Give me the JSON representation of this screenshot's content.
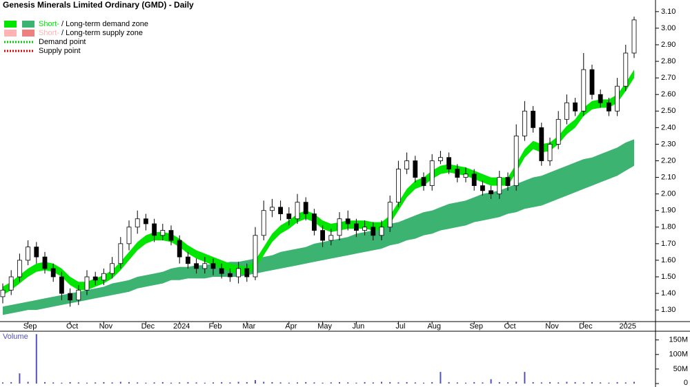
{
  "chart_data": {
    "type": "candlestick",
    "title": "Genesis Minerals Limited Ordinary (GMD) - Daily",
    "categories": [
      null,
      null,
      null,
      "Sep",
      null,
      null,
      null,
      null,
      "Oct",
      null,
      null,
      null,
      "Nov",
      null,
      null,
      null,
      null,
      "Dec",
      null,
      null,
      null,
      "2024",
      null,
      null,
      null,
      "Feb",
      null,
      null,
      null,
      "Mar",
      null,
      null,
      null,
      null,
      "Apr",
      null,
      null,
      null,
      "May",
      null,
      null,
      null,
      "Jun",
      null,
      null,
      null,
      null,
      "Jul",
      null,
      null,
      null,
      "Aug",
      null,
      null,
      null,
      null,
      "Sep",
      null,
      null,
      null,
      "Oct",
      null,
      null,
      null,
      null,
      "Nov",
      null,
      null,
      null,
      "Dec",
      null,
      null,
      null,
      null,
      "2025",
      null
    ],
    "open": [
      1.38,
      1.42,
      1.5,
      1.6,
      1.68,
      1.62,
      1.55,
      1.5,
      1.4,
      1.36,
      1.42,
      1.5,
      1.48,
      1.52,
      1.58,
      1.7,
      1.8,
      1.85,
      1.82,
      1.75,
      1.78,
      1.72,
      1.62,
      1.58,
      1.55,
      1.58,
      1.55,
      1.52,
      1.5,
      1.55,
      1.5,
      1.75,
      1.9,
      1.92,
      1.88,
      1.85,
      1.95,
      1.88,
      1.78,
      1.72,
      1.75,
      1.85,
      1.82,
      1.78,
      1.8,
      1.75,
      1.8,
      1.95,
      2.15,
      2.2,
      2.1,
      2.05,
      2.2,
      2.22,
      2.15,
      2.1,
      2.12,
      2.05,
      2.02,
      2.0,
      2.1,
      2.05,
      2.35,
      2.5,
      2.4,
      2.2,
      2.3,
      2.45,
      2.55,
      2.5,
      2.75,
      2.6,
      2.55,
      2.5,
      2.65,
      2.85
    ],
    "high": [
      1.46,
      1.54,
      1.64,
      1.72,
      1.71,
      1.65,
      1.58,
      1.53,
      1.43,
      1.45,
      1.54,
      1.53,
      1.55,
      1.62,
      1.74,
      1.84,
      1.9,
      1.88,
      1.85,
      1.82,
      1.81,
      1.75,
      1.65,
      1.61,
      1.62,
      1.61,
      1.58,
      1.55,
      1.59,
      1.58,
      1.8,
      1.96,
      1.97,
      1.96,
      1.92,
      2.0,
      1.98,
      1.91,
      1.81,
      1.79,
      1.89,
      1.9,
      1.85,
      1.84,
      1.83,
      1.84,
      1.99,
      2.2,
      2.25,
      2.23,
      2.13,
      2.24,
      2.26,
      2.25,
      2.18,
      2.16,
      2.15,
      2.08,
      2.05,
      2.14,
      2.13,
      2.42,
      2.56,
      2.53,
      2.43,
      2.34,
      2.5,
      2.6,
      2.58,
      2.85,
      2.78,
      2.63,
      2.58,
      2.7,
      2.9,
      3.07
    ],
    "low": [
      1.34,
      1.39,
      1.47,
      1.57,
      1.58,
      1.52,
      1.47,
      1.36,
      1.32,
      1.33,
      1.39,
      1.45,
      1.45,
      1.49,
      1.55,
      1.66,
      1.76,
      1.78,
      1.71,
      1.72,
      1.69,
      1.58,
      1.55,
      1.52,
      1.52,
      1.51,
      1.49,
      1.47,
      1.46,
      1.47,
      1.48,
      1.72,
      1.86,
      1.84,
      1.81,
      1.82,
      1.84,
      1.75,
      1.68,
      1.69,
      1.72,
      1.78,
      1.74,
      1.75,
      1.72,
      1.72,
      1.77,
      1.92,
      2.12,
      2.07,
      2.02,
      2.02,
      2.18,
      2.12,
      2.07,
      2.07,
      2.02,
      1.99,
      1.97,
      1.97,
      2.02,
      2.02,
      2.32,
      2.37,
      2.17,
      2.17,
      2.27,
      2.42,
      2.47,
      2.47,
      2.57,
      2.52,
      2.47,
      2.47,
      2.62,
      2.82
    ],
    "close": [
      1.42,
      1.5,
      1.6,
      1.68,
      1.62,
      1.55,
      1.5,
      1.4,
      1.36,
      1.42,
      1.5,
      1.48,
      1.52,
      1.58,
      1.7,
      1.8,
      1.85,
      1.82,
      1.75,
      1.78,
      1.72,
      1.62,
      1.58,
      1.55,
      1.58,
      1.55,
      1.52,
      1.5,
      1.55,
      1.5,
      1.75,
      1.9,
      1.92,
      1.88,
      1.85,
      1.95,
      1.88,
      1.78,
      1.72,
      1.75,
      1.85,
      1.82,
      1.78,
      1.8,
      1.75,
      1.8,
      1.95,
      2.15,
      2.2,
      2.1,
      2.05,
      2.2,
      2.22,
      2.15,
      2.1,
      2.12,
      2.05,
      2.02,
      2.0,
      2.1,
      2.05,
      2.35,
      2.5,
      2.4,
      2.2,
      2.3,
      2.45,
      2.55,
      2.5,
      2.75,
      2.6,
      2.55,
      2.5,
      2.65,
      2.85,
      3.05
    ],
    "short_zone": {
      "color": "#00e600",
      "upper": [
        1.44,
        1.47,
        1.51,
        1.55,
        1.58,
        1.59,
        1.58,
        1.55,
        1.5,
        1.47,
        1.47,
        1.49,
        1.51,
        1.54,
        1.59,
        1.65,
        1.71,
        1.75,
        1.77,
        1.77,
        1.76,
        1.73,
        1.69,
        1.66,
        1.64,
        1.62,
        1.6,
        1.58,
        1.57,
        1.56,
        1.6,
        1.68,
        1.76,
        1.81,
        1.84,
        1.88,
        1.9,
        1.88,
        1.84,
        1.82,
        1.83,
        1.84,
        1.84,
        1.84,
        1.83,
        1.83,
        1.87,
        1.95,
        2.03,
        2.08,
        2.1,
        2.14,
        2.17,
        2.18,
        2.17,
        2.16,
        2.14,
        2.12,
        2.1,
        2.1,
        2.1,
        2.18,
        2.27,
        2.32,
        2.3,
        2.31,
        2.35,
        2.41,
        2.45,
        2.52,
        2.56,
        2.57,
        2.57,
        2.6,
        2.67,
        2.75
      ],
      "lower": [
        1.39,
        1.42,
        1.46,
        1.5,
        1.53,
        1.54,
        1.53,
        1.5,
        1.45,
        1.42,
        1.42,
        1.44,
        1.46,
        1.49,
        1.54,
        1.6,
        1.66,
        1.7,
        1.72,
        1.72,
        1.71,
        1.68,
        1.64,
        1.61,
        1.59,
        1.57,
        1.55,
        1.53,
        1.52,
        1.51,
        1.55,
        1.63,
        1.71,
        1.76,
        1.79,
        1.83,
        1.85,
        1.83,
        1.79,
        1.77,
        1.78,
        1.79,
        1.79,
        1.79,
        1.78,
        1.78,
        1.82,
        1.9,
        1.98,
        2.03,
        2.05,
        2.09,
        2.12,
        2.13,
        2.12,
        2.11,
        2.09,
        2.07,
        2.05,
        2.05,
        2.05,
        2.13,
        2.22,
        2.27,
        2.25,
        2.26,
        2.3,
        2.36,
        2.4,
        2.47,
        2.51,
        2.52,
        2.52,
        2.55,
        2.62,
        2.7
      ]
    },
    "long_zone": {
      "color": "#3cb371",
      "upper": [
        1.32,
        1.33,
        1.34,
        1.35,
        1.36,
        1.37,
        1.38,
        1.39,
        1.4,
        1.41,
        1.42,
        1.43,
        1.44,
        1.46,
        1.47,
        1.48,
        1.5,
        1.51,
        1.52,
        1.53,
        1.55,
        1.56,
        1.56,
        1.57,
        1.57,
        1.58,
        1.58,
        1.59,
        1.59,
        1.6,
        1.61,
        1.62,
        1.63,
        1.65,
        1.66,
        1.67,
        1.68,
        1.7,
        1.71,
        1.72,
        1.73,
        1.74,
        1.76,
        1.77,
        1.78,
        1.8,
        1.82,
        1.83,
        1.85,
        1.87,
        1.89,
        1.9,
        1.92,
        1.94,
        1.95,
        1.96,
        1.98,
        2.0,
        2.01,
        2.02,
        2.04,
        2.06,
        2.08,
        2.1,
        2.11,
        2.13,
        2.15,
        2.17,
        2.19,
        2.21,
        2.22,
        2.24,
        2.26,
        2.28,
        2.31,
        2.33
      ],
      "lower": [
        1.27,
        1.28,
        1.29,
        1.3,
        1.3,
        1.31,
        1.32,
        1.33,
        1.34,
        1.35,
        1.36,
        1.37,
        1.38,
        1.39,
        1.4,
        1.41,
        1.43,
        1.44,
        1.45,
        1.46,
        1.48,
        1.48,
        1.49,
        1.49,
        1.49,
        1.5,
        1.5,
        1.5,
        1.5,
        1.51,
        1.52,
        1.53,
        1.54,
        1.55,
        1.56,
        1.57,
        1.58,
        1.59,
        1.6,
        1.61,
        1.62,
        1.63,
        1.64,
        1.65,
        1.66,
        1.67,
        1.69,
        1.7,
        1.72,
        1.73,
        1.75,
        1.76,
        1.78,
        1.79,
        1.8,
        1.81,
        1.83,
        1.84,
        1.85,
        1.86,
        1.88,
        1.89,
        1.91,
        1.92,
        1.93,
        1.95,
        1.97,
        1.99,
        2.01,
        2.03,
        2.05,
        2.07,
        2.09,
        2.11,
        2.14,
        2.17
      ]
    },
    "ylim": [
      1.23,
      3.17
    ],
    "yticks": [
      {
        "value": 1.3,
        "label": "1.30"
      },
      {
        "value": 1.4,
        "label": "1.40"
      },
      {
        "value": 1.5,
        "label": "1.50"
      },
      {
        "value": 1.6,
        "label": "1.60"
      },
      {
        "value": 1.7,
        "label": "1.70"
      },
      {
        "value": 1.8,
        "label": "1.80"
      },
      {
        "value": 1.9,
        "label": "1.90"
      },
      {
        "value": 2.0,
        "label": "2.00"
      },
      {
        "value": 2.1,
        "label": "2.10"
      },
      {
        "value": 2.2,
        "label": "2.20"
      },
      {
        "value": 2.3,
        "label": "2.30"
      },
      {
        "value": 2.4,
        "label": "2.40"
      },
      {
        "value": 2.5,
        "label": "2.50"
      },
      {
        "value": 2.6,
        "label": "2.60"
      },
      {
        "value": 2.7,
        "label": "2.70"
      },
      {
        "value": 2.8,
        "label": "2.80"
      },
      {
        "value": 2.9,
        "label": "2.90"
      },
      {
        "value": 3.0,
        "label": "3.00"
      },
      {
        "value": 3.1,
        "label": "3.10"
      }
    ],
    "legend": [
      {
        "colors": [
          "#00e600",
          "#3cb371"
        ],
        "short": "Short-",
        "sep": " / ",
        "long": "Long-term demand zone"
      },
      {
        "colors": [
          "#ffb3b3",
          "#f08080"
        ],
        "short": "Short-",
        "sep": " / ",
        "long": "Long-term supply zone"
      },
      {
        "color": "#00cc00",
        "label": "Demand point"
      },
      {
        "color": "#dd0000",
        "label": "Supply point"
      }
    ],
    "volume": {
      "label": "Volume",
      "color": "#5050c8",
      "ylim": [
        0,
        180000000
      ],
      "yticks": [
        0,
        {
          "value": 50000000,
          "label": "50M"
        },
        {
          "value": 100000000,
          "label": "100M"
        },
        {
          "value": 150000000,
          "label": "150M"
        }
      ],
      "values": [
        4000000,
        5000000,
        35000000,
        6000000,
        170000000,
        5000000,
        4000000,
        3000000,
        5000000,
        4000000,
        3000000,
        4000000,
        5000000,
        4000000,
        6000000,
        5000000,
        4000000,
        3000000,
        4000000,
        5000000,
        3000000,
        4000000,
        5000000,
        4000000,
        3000000,
        4000000,
        5000000,
        4000000,
        6000000,
        5000000,
        12000000,
        6000000,
        5000000,
        4000000,
        3000000,
        4000000,
        5000000,
        4000000,
        3000000,
        4000000,
        5000000,
        4000000,
        3000000,
        5000000,
        4000000,
        6000000,
        5000000,
        4000000,
        5000000,
        4000000,
        3000000,
        5000000,
        40000000,
        5000000,
        4000000,
        3000000,
        5000000,
        4000000,
        15000000,
        5000000,
        4000000,
        6000000,
        40000000,
        5000000,
        4000000,
        5000000,
        4000000,
        6000000,
        5000000,
        4000000,
        5000000,
        4000000,
        3000000,
        5000000,
        4000000,
        6000000
      ]
    }
  }
}
